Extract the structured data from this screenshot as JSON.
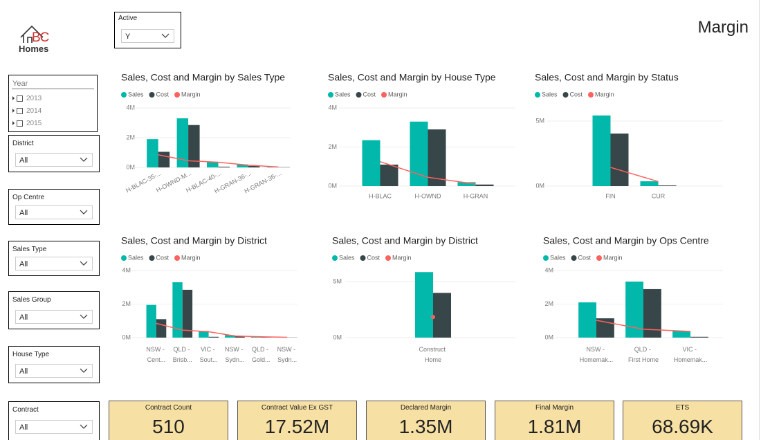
{
  "logo": {
    "mark": "BC",
    "name": "Homes"
  },
  "page_title": "Margin",
  "active_slicer": {
    "label": "Active",
    "value": "Y"
  },
  "year_slicer": {
    "label": "Year",
    "items": [
      "2013",
      "2014",
      "2015"
    ]
  },
  "slicers": [
    {
      "label": "District",
      "value": "All"
    },
    {
      "label": "Op Centre",
      "value": "All"
    },
    {
      "label": "Sales Type",
      "value": "All"
    },
    {
      "label": "Sales Group",
      "value": "All"
    },
    {
      "label": "House Type",
      "value": "All"
    },
    {
      "label": "Contract",
      "value": "All"
    }
  ],
  "cards": [
    {
      "label": "Contract Count",
      "value": "510"
    },
    {
      "label": "Contract Value Ex GST",
      "value": "17.52M"
    },
    {
      "label": "Declared Margin",
      "value": "1.35M"
    },
    {
      "label": "Final Margin",
      "value": "1.81M"
    },
    {
      "label": "ETS",
      "value": "68.69K"
    }
  ],
  "chart_data": [
    {
      "type": "bar",
      "title": "Sales, Cost and Margin by Sales Type",
      "categories": [
        "H-BLAC-35-...",
        "H-OWND-M...",
        "H-BLAC-40-...",
        "H-GRAN-36-...",
        "H-GRAN-36-..."
      ],
      "series": [
        {
          "name": "Sales",
          "color": "#01B8AA",
          "values": [
            1.9,
            3.3,
            0.35,
            0.2,
            0.05
          ]
        },
        {
          "name": "Cost",
          "color": "#374649",
          "values": [
            1.05,
            2.85,
            0.05,
            0.1,
            0.02
          ]
        },
        {
          "name": "Margin",
          "color": "#FD625E",
          "type": "line",
          "values": [
            0.85,
            0.45,
            0.35,
            0.15,
            0.03
          ]
        }
      ],
      "ylim": [
        0,
        4
      ],
      "yticks": [
        {
          "value": 0,
          "label": "0M"
        },
        {
          "value": 2,
          "label": "2M"
        },
        {
          "value": 4,
          "label": "4M"
        }
      ],
      "grid": true
    },
    {
      "type": "bar",
      "title": "Sales, Cost and Margin by House Type",
      "categories": [
        "H-BLAC",
        "H-OWND",
        "H-GRAN"
      ],
      "series": [
        {
          "name": "Sales",
          "color": "#01B8AA",
          "values": [
            2.35,
            3.3,
            0.2
          ]
        },
        {
          "name": "Cost",
          "color": "#374649",
          "values": [
            1.1,
            2.9,
            0.08
          ]
        },
        {
          "name": "Margin",
          "color": "#FD625E",
          "type": "line",
          "values": [
            1.25,
            0.45,
            0.1
          ]
        }
      ],
      "ylim": [
        0,
        4
      ],
      "yticks": [
        {
          "value": 0,
          "label": "0M"
        },
        {
          "value": 2,
          "label": "2M"
        },
        {
          "value": 4,
          "label": "4M"
        }
      ],
      "grid": true
    },
    {
      "type": "bar",
      "title": "Sales, Cost and Margin by Status",
      "categories": [
        "FIN",
        "CUR"
      ],
      "series": [
        {
          "name": "Sales",
          "color": "#01B8AA",
          "values": [
            5.43,
            0.37
          ]
        },
        {
          "name": "Cost",
          "color": "#374649",
          "values": [
            4.04,
            0.05
          ]
        },
        {
          "name": "Margin",
          "color": "#FD625E",
          "type": "line",
          "values": [
            1.44,
            0.35
          ]
        }
      ],
      "ylim": [
        0,
        6
      ],
      "yticks": [
        {
          "value": 0,
          "label": "0M"
        },
        {
          "value": 5,
          "label": "5M"
        }
      ],
      "grid": true
    },
    {
      "type": "bar",
      "title": "Sales, Cost and Margin by District",
      "categories": [
        "NSW - Cent...",
        "QLD - Brisb...",
        "VIC - Sout...",
        "NSW - Sydn...",
        "QLD - Gold...",
        "NSW - Sydn..."
      ],
      "series": [
        {
          "name": "Sales",
          "color": "#01B8AA",
          "values": [
            1.95,
            3.3,
            0.4,
            0.15,
            0.05,
            0.02
          ]
        },
        {
          "name": "Cost",
          "color": "#374649",
          "values": [
            1.1,
            2.85,
            0.05,
            0.08,
            0.03,
            0.01
          ]
        },
        {
          "name": "Margin",
          "color": "#FD625E",
          "type": "line",
          "values": [
            0.85,
            0.45,
            0.35,
            0.1,
            0.05,
            0.02
          ]
        }
      ],
      "ylim": [
        0,
        4
      ],
      "yticks": [
        {
          "value": 0,
          "label": "0M"
        },
        {
          "value": 2,
          "label": "2M"
        },
        {
          "value": 4,
          "label": "4M"
        }
      ],
      "grid": true
    },
    {
      "type": "bar",
      "title": "Sales, Cost and Margin by District",
      "categories": [
        "Construct Home"
      ],
      "series": [
        {
          "name": "Sales",
          "color": "#01B8AA",
          "values": [
            5.86
          ]
        },
        {
          "name": "Cost",
          "color": "#374649",
          "values": [
            4.0
          ]
        },
        {
          "name": "Margin",
          "color": "#FD625E",
          "type": "line",
          "values": [
            1.85
          ]
        }
      ],
      "ylim": [
        0,
        6
      ],
      "yticks": [
        {
          "value": 0,
          "label": "0M"
        },
        {
          "value": 5,
          "label": "5M"
        }
      ],
      "grid": true
    },
    {
      "type": "bar",
      "title": "Sales, Cost and Margin by Ops Centre",
      "categories": [
        "NSW - Homemak...",
        "QLD - First Home",
        "VIC - Homemak..."
      ],
      "series": [
        {
          "name": "Sales",
          "color": "#01B8AA",
          "values": [
            2.1,
            3.34,
            0.4
          ]
        },
        {
          "name": "Cost",
          "color": "#374649",
          "values": [
            1.15,
            2.89,
            0.05
          ]
        },
        {
          "name": "Margin",
          "color": "#FD625E",
          "type": "line",
          "values": [
            1.03,
            0.5,
            0.37
          ]
        }
      ],
      "ylim": [
        0,
        4
      ],
      "yticks": [
        {
          "value": 0,
          "label": "0M"
        },
        {
          "value": 2,
          "label": "2M"
        },
        {
          "value": 4,
          "label": "4M"
        }
      ],
      "grid": true
    }
  ]
}
